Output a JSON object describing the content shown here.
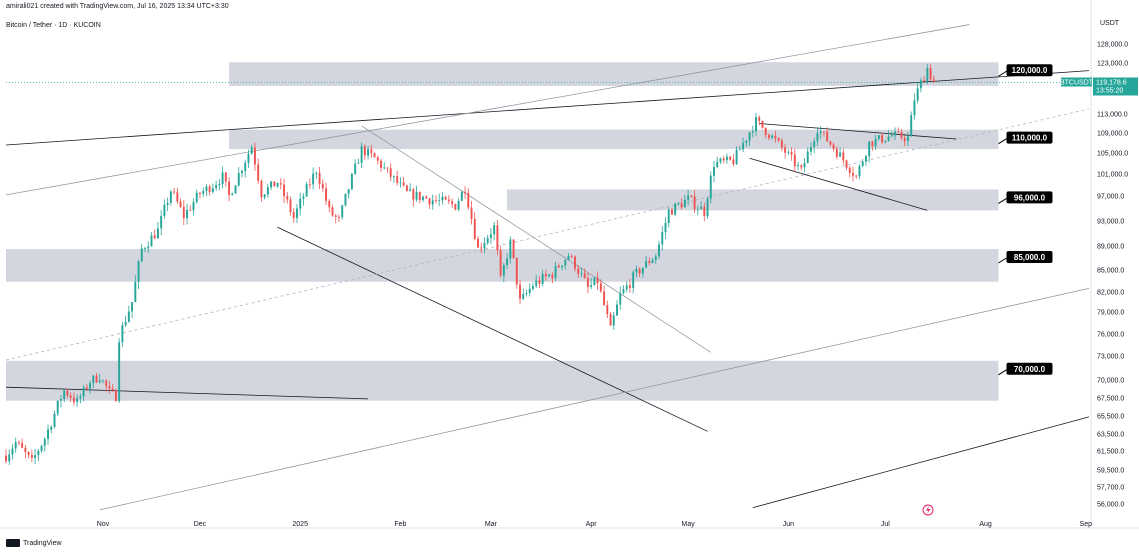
{
  "header": {
    "attribution": "amirali021 created with TradingView.com, Jul 16, 2025 13:34 UTC+3:30",
    "pair": "Bitcoin / Tether · 1D · KUCOIN"
  },
  "footer": {
    "logo_text": "TradingView"
  },
  "price_tag": {
    "symbol": "BTCUSDT",
    "price": "119,178.6",
    "countdown": "13:55:20",
    "color": "#26a69a"
  },
  "colors": {
    "up": "#26a69a",
    "down": "#ef5350",
    "zone": "#d1d4dc",
    "label_bg": "#000000"
  },
  "chart_data": {
    "type": "candlestick",
    "yaxis_unit": "USDT",
    "y_ticks": [
      {
        "value": 128000,
        "label": "128,000.0"
      },
      {
        "value": 123000,
        "label": "123,000.0"
      },
      {
        "value": 113000,
        "label": "113,000.0"
      },
      {
        "value": 109000,
        "label": "109,000.0"
      },
      {
        "value": 105000,
        "label": "105,000.0"
      },
      {
        "value": 101000,
        "label": "101,000.0"
      },
      {
        "value": 97000,
        "label": "97,000.0"
      },
      {
        "value": 93000,
        "label": "93,000.0"
      },
      {
        "value": 89000,
        "label": "89,000.0"
      },
      {
        "value": 85000,
        "label": "85,000.0"
      },
      {
        "value": 82000,
        "label": "82,000.0"
      },
      {
        "value": 79000,
        "label": "79,000.0"
      },
      {
        "value": 76000,
        "label": "76,000.0"
      },
      {
        "value": 73000,
        "label": "73,000.0"
      },
      {
        "value": 70000,
        "label": "70,000.0"
      },
      {
        "value": 67500,
        "label": "67,500.0"
      },
      {
        "value": 65500,
        "label": "65,500.0"
      },
      {
        "value": 63500,
        "label": "63,500.0"
      },
      {
        "value": 61500,
        "label": "61,500.0"
      },
      {
        "value": 59500,
        "label": "59,500.0"
      },
      {
        "value": 57700,
        "label": "57,700.0"
      },
      {
        "value": 56000,
        "label": "56,000.0"
      }
    ],
    "x_ticks": [
      {
        "date": "2024-11-01",
        "label": "Nov"
      },
      {
        "date": "2024-12-01",
        "label": "Dec"
      },
      {
        "date": "2025-01-01",
        "label": "2025"
      },
      {
        "date": "2025-02-01",
        "label": "Feb"
      },
      {
        "date": "2025-03-01",
        "label": "Mar"
      },
      {
        "date": "2025-04-01",
        "label": "Apr"
      },
      {
        "date": "2025-05-01",
        "label": "May"
      },
      {
        "date": "2025-06-01",
        "label": "Jun"
      },
      {
        "date": "2025-07-01",
        "label": "Jul"
      },
      {
        "date": "2025-08-01",
        "label": "Aug"
      },
      {
        "date": "2025-09-01",
        "label": "Sep"
      }
    ],
    "x_range": [
      "2024-10-02",
      "2025-09-02"
    ],
    "zones": [
      {
        "label": "120,000.0",
        "low": 118500,
        "high": 123200,
        "start": "2024-12-10"
      },
      {
        "label": "110,000.0",
        "low": 105800,
        "high": 109700,
        "start": "2024-12-10"
      },
      {
        "label": "96,000.0",
        "low": 94700,
        "high": 98200,
        "start": "2025-03-06"
      },
      {
        "label": "85,000.0",
        "low": 83400,
        "high": 88500,
        "start": "2024-10-02"
      },
      {
        "label": "70,000.0",
        "low": 67200,
        "high": 72400,
        "start": "2024-10-02"
      }
    ],
    "zone_end": "2025-08-05",
    "trendlines": [
      {
        "style": "solid",
        "color": "#131722",
        "from": [
          "2024-10-02",
          106600
        ],
        "to": [
          "2025-09-02",
          121500
        ]
      },
      {
        "style": "solid",
        "color": "#9598a1",
        "from": [
          "2024-10-02",
          97200
        ],
        "to": [
          "2025-07-27",
          130000
        ]
      },
      {
        "style": "solid",
        "color": "#131722",
        "from": [
          "2024-12-25",
          92000
        ],
        "to": [
          "2025-05-07",
          63800
        ]
      },
      {
        "style": "solid",
        "color": "#9598a1",
        "from": [
          "2025-01-20",
          110500
        ],
        "to": [
          "2025-05-08",
          73500
        ]
      },
      {
        "style": "solid",
        "color": "#131722",
        "from": [
          "2024-10-02",
          69000
        ],
        "to": [
          "2025-01-22",
          67400
        ]
      },
      {
        "style": "solid",
        "color": "#9598a1",
        "from": [
          "2024-10-31",
          55200
        ],
        "to": [
          "2025-09-02",
          82500
        ]
      },
      {
        "style": "solid",
        "color": "#131722",
        "from": [
          "2025-05-21",
          55500
        ],
        "to": [
          "2025-09-02",
          65400
        ]
      },
      {
        "style": "dashed",
        "color": "#b2b5be",
        "from": [
          "2024-10-02",
          72500
        ],
        "to": [
          "2025-09-02",
          114000
        ]
      },
      {
        "style": "solid",
        "color": "#131722",
        "from": [
          "2025-05-23",
          111000
        ],
        "to": [
          "2025-07-23",
          107800
        ]
      },
      {
        "style": "solid",
        "color": "#131722",
        "from": [
          "2025-05-20",
          104000
        ],
        "to": [
          "2025-07-14",
          94700
        ]
      }
    ],
    "last_price": 119178.6,
    "price_path": [
      [
        "2024-10-02",
        61000
      ],
      [
        "2024-10-05",
        62500
      ],
      [
        "2024-10-10",
        60300
      ],
      [
        "2024-10-14",
        63000
      ],
      [
        "2024-10-20",
        68500
      ],
      [
        "2024-10-24",
        67000
      ],
      [
        "2024-10-28",
        69800
      ],
      [
        "2024-10-31",
        70500
      ],
      [
        "2024-11-03",
        68300
      ],
      [
        "2024-11-05",
        67800
      ],
      [
        "2024-11-06",
        75600
      ],
      [
        "2024-11-10",
        80500
      ],
      [
        "2024-11-13",
        88500
      ],
      [
        "2024-11-18",
        91500
      ],
      [
        "2024-11-22",
        98000
      ],
      [
        "2024-11-26",
        93800
      ],
      [
        "2024-12-01",
        97500
      ],
      [
        "2024-12-05",
        99000
      ],
      [
        "2024-12-08",
        100500
      ],
      [
        "2024-12-10",
        97000
      ],
      [
        "2024-12-17",
        106300
      ],
      [
        "2024-12-20",
        97500
      ],
      [
        "2024-12-25",
        99500
      ],
      [
        "2024-12-30",
        93500
      ],
      [
        "2025-01-06",
        101800
      ],
      [
        "2025-01-10",
        94500
      ],
      [
        "2025-01-13",
        93000
      ],
      [
        "2025-01-20",
        105700
      ],
      [
        "2025-01-24",
        104000
      ],
      [
        "2025-01-28",
        101300
      ],
      [
        "2025-02-03",
        97500
      ],
      [
        "2025-02-10",
        96500
      ],
      [
        "2025-02-18",
        95500
      ],
      [
        "2025-02-21",
        98500
      ],
      [
        "2025-02-25",
        88500
      ],
      [
        "2025-03-02",
        92000
      ],
      [
        "2025-03-04",
        83500
      ],
      [
        "2025-03-07",
        89500
      ],
      [
        "2025-03-10",
        80500
      ],
      [
        "2025-03-14",
        83000
      ],
      [
        "2025-03-20",
        84500
      ],
      [
        "2025-03-25",
        87500
      ],
      [
        "2025-03-31",
        82500
      ],
      [
        "2025-04-03",
        83500
      ],
      [
        "2025-04-07",
        76500
      ],
      [
        "2025-04-10",
        81500
      ],
      [
        "2025-04-15",
        84500
      ],
      [
        "2025-04-21",
        87500
      ],
      [
        "2025-04-25",
        94500
      ],
      [
        "2025-05-01",
        96500
      ],
      [
        "2025-05-06",
        94500
      ],
      [
        "2025-05-09",
        103000
      ],
      [
        "2025-05-15",
        103500
      ],
      [
        "2025-05-22",
        111500
      ],
      [
        "2025-05-28",
        107500
      ],
      [
        "2025-06-05",
        101500
      ],
      [
        "2025-06-10",
        110000
      ],
      [
        "2025-06-17",
        104500
      ],
      [
        "2025-06-22",
        100500
      ],
      [
        "2025-06-26",
        107000
      ],
      [
        "2025-07-03",
        108500
      ],
      [
        "2025-07-08",
        108000
      ],
      [
        "2025-07-10",
        116000
      ],
      [
        "2025-07-14",
        122000
      ],
      [
        "2025-07-16",
        119178.6
      ]
    ]
  }
}
